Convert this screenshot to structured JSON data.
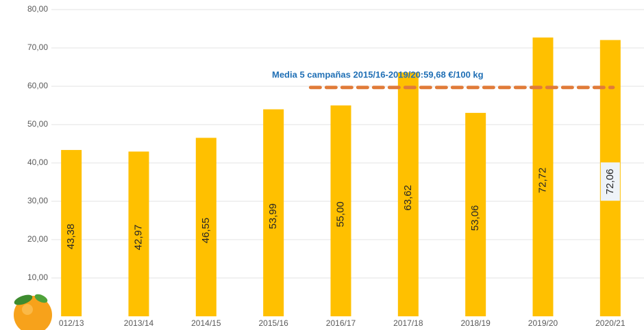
{
  "chart_data": {
    "type": "bar",
    "categories": [
      "012/13",
      "2013/14",
      "2014/15",
      "2015/16",
      "2016/17",
      "2017/18",
      "2018/19",
      "2019/20",
      "2020/21"
    ],
    "values": [
      43.38,
      42.97,
      46.55,
      53.99,
      55.0,
      63.62,
      53.06,
      72.72,
      72.06
    ],
    "value_labels": [
      "43,38",
      "42,97",
      "46,55",
      "53,99",
      "55,00",
      "63,62",
      "53,06",
      "72,72",
      "72,06"
    ],
    "color": "#ffc000",
    "ylim": [
      0,
      80
    ],
    "yticks": [
      {
        "value": 10,
        "label": "10,00"
      },
      {
        "value": 20,
        "label": "20,00"
      },
      {
        "value": 30,
        "label": "30,00"
      },
      {
        "value": 40,
        "label": "40,00"
      },
      {
        "value": 50,
        "label": "50,00"
      },
      {
        "value": 60,
        "label": "60,00"
      },
      {
        "value": 70,
        "label": "70,00"
      },
      {
        "value": 80,
        "label": "80,00"
      }
    ],
    "grid": true,
    "reference_line": {
      "value": 59.68,
      "color": "#e07b39"
    },
    "annotation": "Media 5 campañas  2015/16-2019/20:59,68 €/100 kg"
  }
}
